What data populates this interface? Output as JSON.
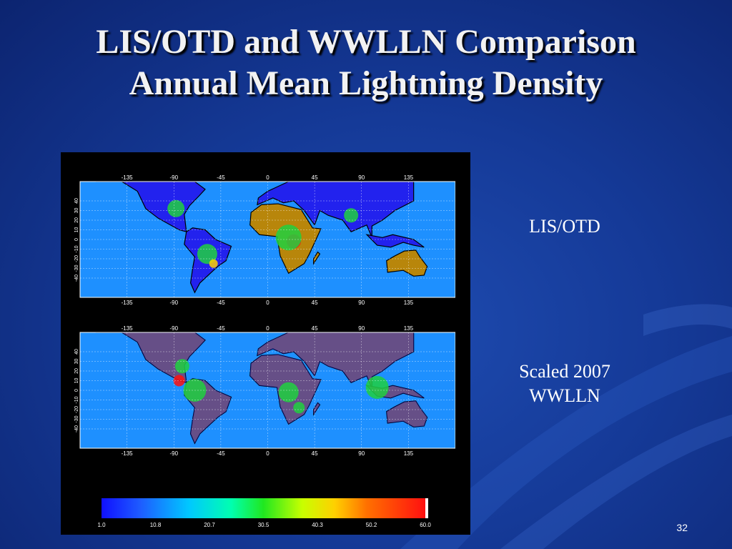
{
  "slide": {
    "title_line1": "LIS/OTD and WWLLN Comparison",
    "title_line2": "Annual Mean Lightning Density",
    "label_top": "LIS/OTD",
    "label_bottom_line1": "Scaled 2007",
    "label_bottom_line2": "WWLLN",
    "page_number": "32"
  },
  "map": {
    "lon_ticks": [
      "-135",
      "-90",
      "-45",
      "0",
      "45",
      "90",
      "135"
    ],
    "lat_ticks": [
      "40",
      "30",
      "20",
      "10",
      "0",
      "-10",
      "-20",
      "-30",
      "-40"
    ]
  },
  "colorbar": {
    "ticks": [
      "1.0",
      "10.8",
      "20.7",
      "30.5",
      "40.3",
      "50.2",
      "60.0"
    ]
  },
  "colors": {
    "ocean": "#1e90ff",
    "land_no_data": "#b8860b",
    "low_density": "#2222ee",
    "high_density": "#ff1010"
  }
}
